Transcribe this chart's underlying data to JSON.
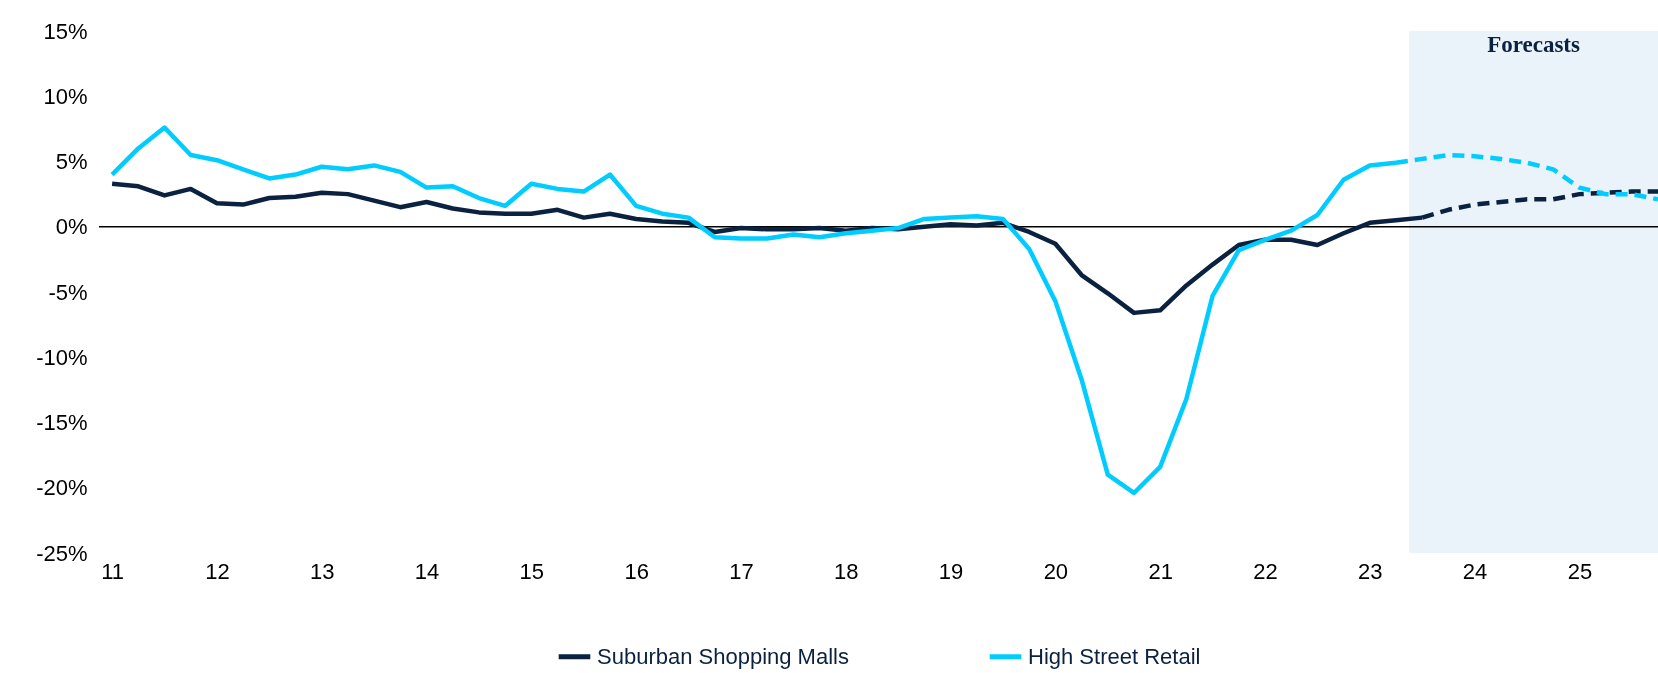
{
  "chart_data": {
    "type": "line",
    "x": [
      11,
      11.25,
      11.5,
      11.75,
      12,
      12.25,
      12.5,
      12.75,
      13,
      13.25,
      13.5,
      13.75,
      14,
      14.25,
      14.5,
      14.75,
      15,
      15.25,
      15.5,
      15.75,
      16,
      16.25,
      16.5,
      16.75,
      17,
      17.25,
      17.5,
      17.75,
      18,
      18.25,
      18.5,
      18.75,
      19,
      19.25,
      19.5,
      19.75,
      20,
      20.25,
      20.5,
      20.75,
      21,
      21.25,
      21.5,
      21.75,
      22,
      22.25,
      22.5,
      22.75,
      23,
      23.25,
      23.5,
      23.75,
      24,
      24.25,
      24.5,
      24.75,
      25,
      25.25,
      25.5,
      25.75
    ],
    "series": [
      {
        "name": "Suburban Shopping Malls",
        "color": "#0a2240",
        "line_style": "solid",
        "values": [
          3.3,
          3.1,
          2.4,
          2.9,
          1.8,
          1.7,
          2.2,
          2.3,
          2.6,
          2.5,
          2.0,
          1.5,
          1.9,
          1.4,
          1.1,
          1.0,
          1.0,
          1.3,
          0.7,
          1.0,
          0.6,
          0.4,
          0.3,
          -0.4,
          -0.1,
          -0.2,
          -0.2,
          -0.1,
          -0.3,
          -0.1,
          -0.2,
          0.0,
          0.2,
          0.1,
          0.3,
          -0.4,
          -1.3,
          -3.7,
          -5.1,
          -6.6,
          -6.4,
          -4.5,
          -2.9,
          -1.4,
          -1.0,
          -1.0,
          -1.4,
          -0.5,
          0.3,
          0.5,
          0.7,
          null,
          null,
          null,
          null,
          null,
          null,
          null,
          null,
          null
        ]
      },
      {
        "name": "High Street Retail",
        "color": "#00ccff",
        "line_style": "solid",
        "values": [
          4.0,
          6.0,
          7.6,
          5.5,
          5.1,
          4.4,
          3.7,
          4.0,
          4.6,
          4.4,
          4.7,
          4.2,
          3.0,
          3.1,
          2.2,
          1.6,
          3.3,
          2.9,
          2.7,
          4.0,
          1.6,
          1.0,
          0.7,
          -0.8,
          -0.9,
          -0.9,
          -0.6,
          -0.8,
          -0.5,
          -0.3,
          -0.1,
          0.6,
          0.7,
          0.8,
          0.6,
          -1.7,
          -5.7,
          -11.7,
          -19.0,
          -20.4,
          -18.4,
          -13.2,
          -5.3,
          -1.8,
          -1.0,
          -0.3,
          0.9,
          3.6,
          4.7,
          4.9,
          null,
          null,
          null,
          null,
          null,
          null,
          null,
          null,
          null,
          null
        ]
      },
      {
        "color": "#0a2240",
        "line_style": "dashed",
        "values": [
          null,
          null,
          null,
          null,
          null,
          null,
          null,
          null,
          null,
          null,
          null,
          null,
          null,
          null,
          null,
          null,
          null,
          null,
          null,
          null,
          null,
          null,
          null,
          null,
          null,
          null,
          null,
          null,
          null,
          null,
          null,
          null,
          null,
          null,
          null,
          null,
          null,
          null,
          null,
          null,
          null,
          null,
          null,
          null,
          null,
          null,
          null,
          null,
          null,
          null,
          0.7,
          1.3,
          1.7,
          1.9,
          2.1,
          2.1,
          2.5,
          2.6,
          2.7,
          2.7
        ]
      },
      {
        "color": "#00ccff",
        "line_style": "dashed",
        "values": [
          null,
          null,
          null,
          null,
          null,
          null,
          null,
          null,
          null,
          null,
          null,
          null,
          null,
          null,
          null,
          null,
          null,
          null,
          null,
          null,
          null,
          null,
          null,
          null,
          null,
          null,
          null,
          null,
          null,
          null,
          null,
          null,
          null,
          null,
          null,
          null,
          null,
          null,
          null,
          null,
          null,
          null,
          null,
          null,
          null,
          null,
          null,
          null,
          null,
          4.9,
          5.2,
          5.5,
          5.4,
          5.2,
          4.9,
          4.4,
          3.0,
          2.5,
          2.5,
          2.1
        ]
      }
    ],
    "xlim": [
      10.875,
      25.75
    ],
    "xticks": [
      11,
      12,
      13,
      14,
      15,
      16,
      17,
      18,
      19,
      20,
      21,
      22,
      23,
      24,
      25
    ],
    "ylim": [
      -25,
      15
    ],
    "yticks": [
      {
        "value": -25,
        "label": "-25%"
      },
      {
        "value": -20,
        "label": "-20%"
      },
      {
        "value": -15,
        "label": "-15%"
      },
      {
        "value": -10,
        "label": "-10%"
      },
      {
        "value": -5,
        "label": "-5%"
      },
      {
        "value": 0,
        "label": "0%"
      },
      {
        "value": 5,
        "label": "5%"
      },
      {
        "value": 10,
        "label": "10%"
      },
      {
        "value": 15,
        "label": "15%"
      }
    ],
    "ref_lines": [
      {
        "axis": "y",
        "value": 0,
        "color": "#000000"
      }
    ],
    "bands": [
      {
        "axis": "x",
        "from": 23.375,
        "to": 25.75,
        "label": "Forecasts",
        "color": "#eaf3fa"
      }
    ],
    "grid": false,
    "legend": "bottom"
  }
}
